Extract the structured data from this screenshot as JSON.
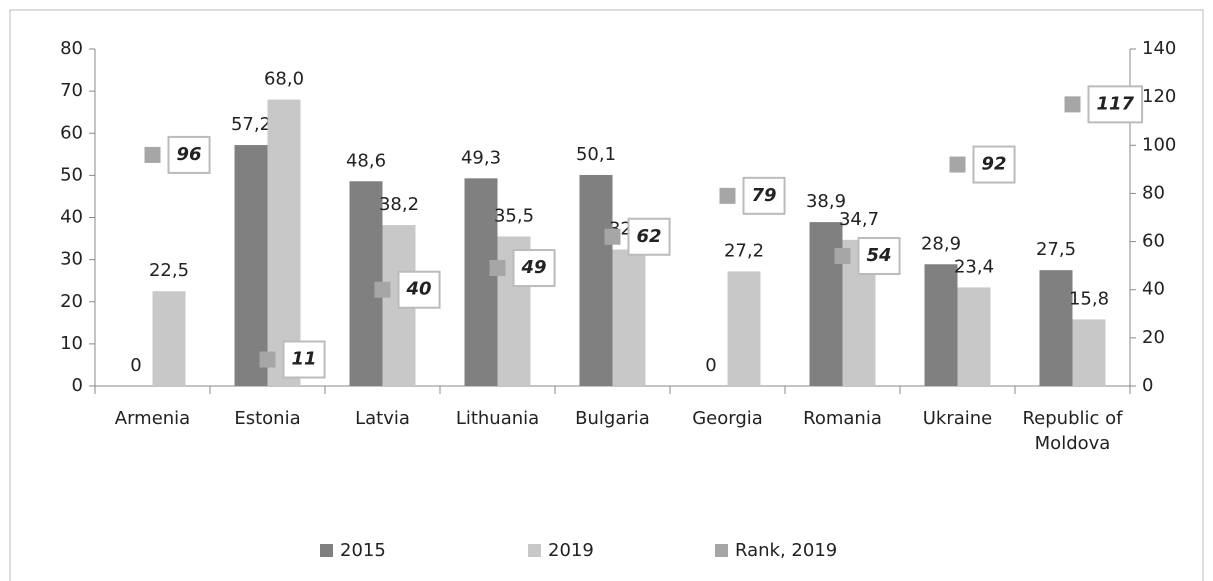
{
  "chart_data": {
    "type": "bar",
    "categories": [
      "Armenia",
      "Estonia",
      "Latvia",
      "Lithuania",
      "Bulgaria",
      "Georgia",
      "Romania",
      "Ukraine",
      "Republic of Moldova"
    ],
    "series": [
      {
        "name": "2015",
        "color": "#808080",
        "values": [
          0,
          57.2,
          48.6,
          49.3,
          50.1,
          0,
          38.9,
          28.9,
          27.5
        ],
        "value_labels": [
          "0",
          "57,2",
          "48,6",
          "49,3",
          "50,1",
          "0",
          "38,9",
          "28,9",
          "27,5"
        ]
      },
      {
        "name": "2019",
        "color": "#c8c8c8",
        "values": [
          22.5,
          68.0,
          38.2,
          35.5,
          32.4,
          27.2,
          34.7,
          23.4,
          15.8
        ],
        "value_labels": [
          "22,5",
          "68,0",
          "38,2",
          "35,5",
          "32,4",
          "27,2",
          "34,7",
          "23,4",
          "15,8"
        ]
      },
      {
        "name": "Rank, 2019",
        "color": "#a6a6a6",
        "type": "marker",
        "axis": "y2",
        "values": [
          96,
          11,
          40,
          49,
          62,
          79,
          54,
          92,
          117
        ]
      }
    ],
    "ylim": [
      0,
      80
    ],
    "yticks": [
      0,
      10,
      20,
      30,
      40,
      50,
      60,
      70,
      80
    ],
    "y2lim": [
      0,
      140
    ],
    "y2ticks": [
      0,
      20,
      40,
      60,
      80,
      100,
      120,
      140
    ],
    "grid": false,
    "legend": "bottom"
  }
}
